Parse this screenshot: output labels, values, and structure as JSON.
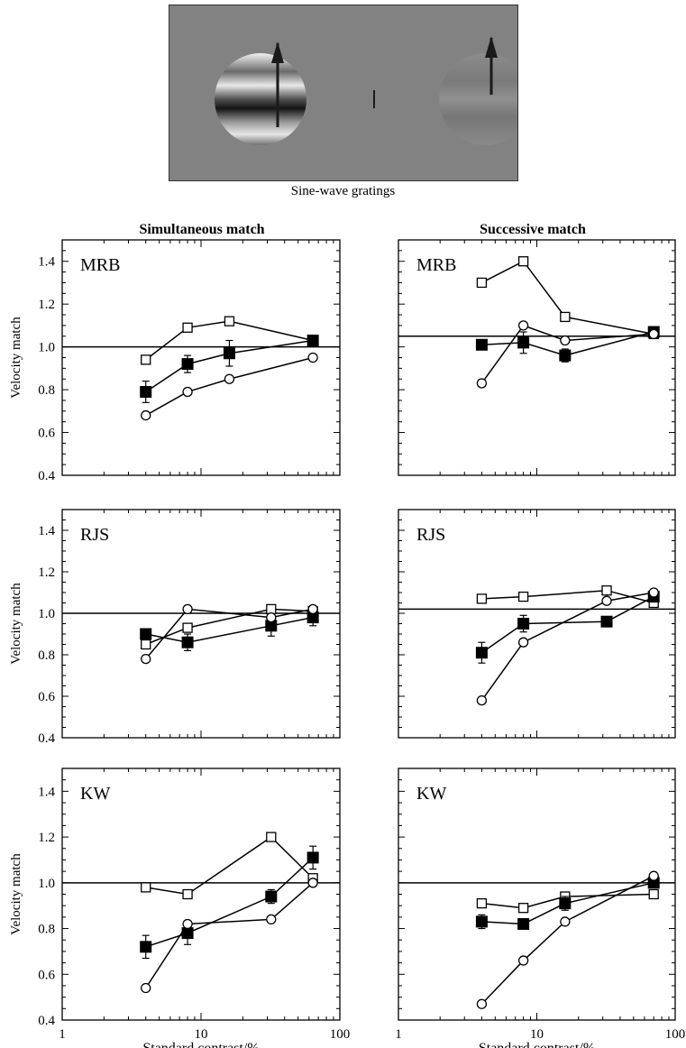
{
  "stimulus": {
    "caption": "Sine-wave gratings"
  },
  "columns": [
    "Simultaneous match",
    "Successive match"
  ],
  "subjects": [
    "MRB",
    "RJS",
    "KW"
  ],
  "ylabel": "Velocity match",
  "xlabel": "Standard contrast/%",
  "chart_data": [
    {
      "type": "line",
      "panel": "Simultaneous match / MRB",
      "label": "MRB",
      "xscale": "log",
      "xlim": [
        1,
        100
      ],
      "ylim": [
        0.4,
        1.5
      ],
      "reference_line": 1.0,
      "series": [
        {
          "marker": "open-square",
          "x": [
            4,
            8,
            16,
            64
          ],
          "y": [
            0.94,
            1.09,
            1.12,
            1.03
          ]
        },
        {
          "marker": "filled-square",
          "x": [
            4,
            8,
            16,
            64
          ],
          "y": [
            0.79,
            0.92,
            0.97,
            1.03
          ],
          "err": [
            0.05,
            0.04,
            0.06,
            0.02
          ]
        },
        {
          "marker": "open-circle",
          "x": [
            4,
            8,
            16,
            64
          ],
          "y": [
            0.68,
            0.79,
            0.85,
            0.95
          ]
        }
      ]
    },
    {
      "type": "line",
      "panel": "Successive match / MRB",
      "label": "MRB",
      "xscale": "log",
      "xlim": [
        1,
        100
      ],
      "ylim": [
        0.4,
        1.5
      ],
      "reference_line": 1.05,
      "series": [
        {
          "marker": "open-square",
          "x": [
            4,
            8,
            16,
            70
          ],
          "y": [
            1.3,
            1.4,
            1.14,
            1.06
          ]
        },
        {
          "marker": "filled-square",
          "x": [
            4,
            8,
            16,
            70
          ],
          "y": [
            1.01,
            1.02,
            0.96,
            1.07
          ],
          "err": [
            0.02,
            0.05,
            0.03,
            0.02
          ]
        },
        {
          "marker": "open-circle",
          "x": [
            4,
            8,
            16,
            70
          ],
          "y": [
            0.83,
            1.1,
            1.03,
            1.06
          ]
        }
      ]
    },
    {
      "type": "line",
      "panel": "Simultaneous match / RJS",
      "label": "RJS",
      "xscale": "log",
      "xlim": [
        1,
        100
      ],
      "ylim": [
        0.4,
        1.5
      ],
      "reference_line": 1.0,
      "series": [
        {
          "marker": "open-square",
          "x": [
            4,
            8,
            32,
            64
          ],
          "y": [
            0.85,
            0.93,
            1.02,
            1.01
          ]
        },
        {
          "marker": "filled-square",
          "x": [
            4,
            8,
            32,
            64
          ],
          "y": [
            0.9,
            0.86,
            0.94,
            0.98
          ],
          "err": [
            0.02,
            0.04,
            0.05,
            0.04
          ]
        },
        {
          "marker": "open-circle",
          "x": [
            4,
            8,
            32,
            64
          ],
          "y": [
            0.78,
            1.02,
            0.98,
            1.02
          ]
        }
      ]
    },
    {
      "type": "line",
      "panel": "Successive match / RJS",
      "label": "RJS",
      "xscale": "log",
      "xlim": [
        1,
        100
      ],
      "ylim": [
        0.4,
        1.5
      ],
      "reference_line": 1.02,
      "series": [
        {
          "marker": "open-square",
          "x": [
            4,
            8,
            32,
            70
          ],
          "y": [
            1.07,
            1.08,
            1.11,
            1.05
          ]
        },
        {
          "marker": "filled-square",
          "x": [
            4,
            8,
            32,
            70
          ],
          "y": [
            0.81,
            0.95,
            0.96,
            1.08
          ],
          "err": [
            0.05,
            0.04,
            0.02,
            0.02
          ]
        },
        {
          "marker": "open-circle",
          "x": [
            4,
            8,
            32,
            70
          ],
          "y": [
            0.58,
            0.86,
            1.06,
            1.1
          ]
        }
      ]
    },
    {
      "type": "line",
      "panel": "Simultaneous match / KW",
      "label": "KW",
      "xscale": "log",
      "xlim": [
        1,
        100
      ],
      "ylim": [
        0.4,
        1.5
      ],
      "reference_line": 1.0,
      "series": [
        {
          "marker": "open-square",
          "x": [
            4,
            8,
            32,
            64
          ],
          "y": [
            0.98,
            0.95,
            1.2,
            1.02
          ]
        },
        {
          "marker": "filled-square",
          "x": [
            4,
            8,
            32,
            64
          ],
          "y": [
            0.72,
            0.78,
            0.94,
            1.11
          ],
          "err": [
            0.05,
            0.05,
            0.03,
            0.05
          ]
        },
        {
          "marker": "open-circle",
          "x": [
            4,
            8,
            32,
            64
          ],
          "y": [
            0.54,
            0.82,
            0.84,
            1.0
          ]
        }
      ]
    },
    {
      "type": "line",
      "panel": "Successive match / KW",
      "label": "KW",
      "xscale": "log",
      "xlim": [
        1,
        100
      ],
      "ylim": [
        0.4,
        1.5
      ],
      "reference_line": 1.0,
      "series": [
        {
          "marker": "open-square",
          "x": [
            4,
            8,
            16,
            70
          ],
          "y": [
            0.91,
            0.89,
            0.94,
            0.95
          ]
        },
        {
          "marker": "filled-square",
          "x": [
            4,
            8,
            16,
            70
          ],
          "y": [
            0.83,
            0.82,
            0.91,
            1.0
          ],
          "err": [
            0.03,
            0.02,
            0.03,
            0.02
          ]
        },
        {
          "marker": "open-circle",
          "x": [
            4,
            8,
            16,
            70
          ],
          "y": [
            0.47,
            0.66,
            0.83,
            1.03
          ]
        }
      ]
    }
  ],
  "yticks": [
    "0.4",
    "0.6",
    "0.8",
    "1.0",
    "1.2",
    "1.4"
  ],
  "xticks": [
    "1",
    "10",
    "100"
  ]
}
